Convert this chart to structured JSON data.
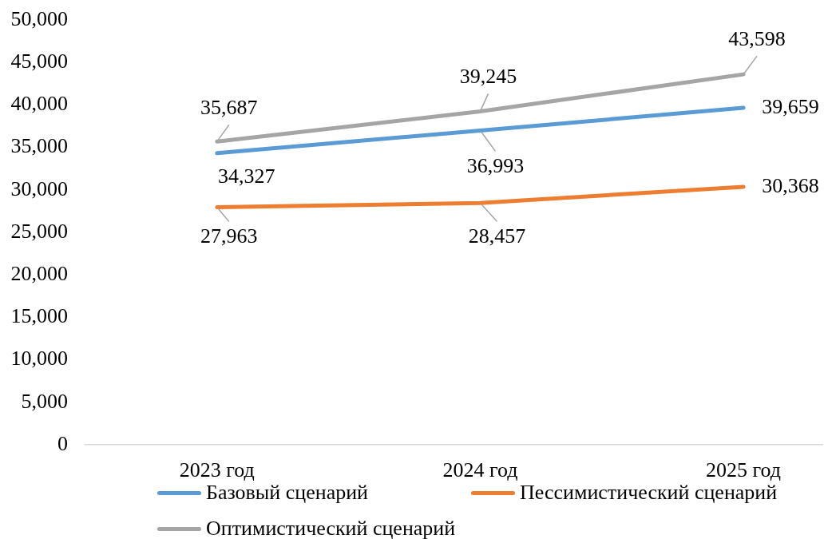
{
  "chart_data": {
    "type": "line",
    "categories": [
      "2023 год",
      "2024 год",
      "2025 год"
    ],
    "series": [
      {
        "name": "Базовый сценарий",
        "color": "#5b9bd5",
        "values": [
          34327,
          36993,
          39659
        ],
        "value_labels": [
          "34,327",
          "36,993",
          "39,659"
        ]
      },
      {
        "name": "Пессимистический сценарий",
        "color": "#ed7d31",
        "values": [
          27963,
          28457,
          30368
        ],
        "value_labels": [
          "27,963",
          "28,457",
          "30,368"
        ]
      },
      {
        "name": "Оптимистический сценарий",
        "color": "#a5a5a5",
        "values": [
          35687,
          39245,
          43598
        ],
        "value_labels": [
          "35,687",
          "39,245",
          "43,598"
        ]
      }
    ],
    "ylim": [
      0,
      50000
    ],
    "yticks": [
      0,
      {
        "value": 5000,
        "label": "5,000"
      },
      {
        "value": 10000,
        "label": "10,000"
      },
      {
        "value": 15000,
        "label": "15,000"
      },
      {
        "value": 20000,
        "label": "20,000"
      },
      {
        "value": 25000,
        "label": "25,000"
      },
      {
        "value": 30000,
        "label": "30,000"
      },
      {
        "value": 35000,
        "label": "35,000"
      },
      {
        "value": 40000,
        "label": "40,000"
      },
      {
        "value": 45000,
        "label": "45,000"
      },
      {
        "value": 50000,
        "label": "50,000"
      }
    ],
    "grid": false,
    "legend": "bottom"
  }
}
